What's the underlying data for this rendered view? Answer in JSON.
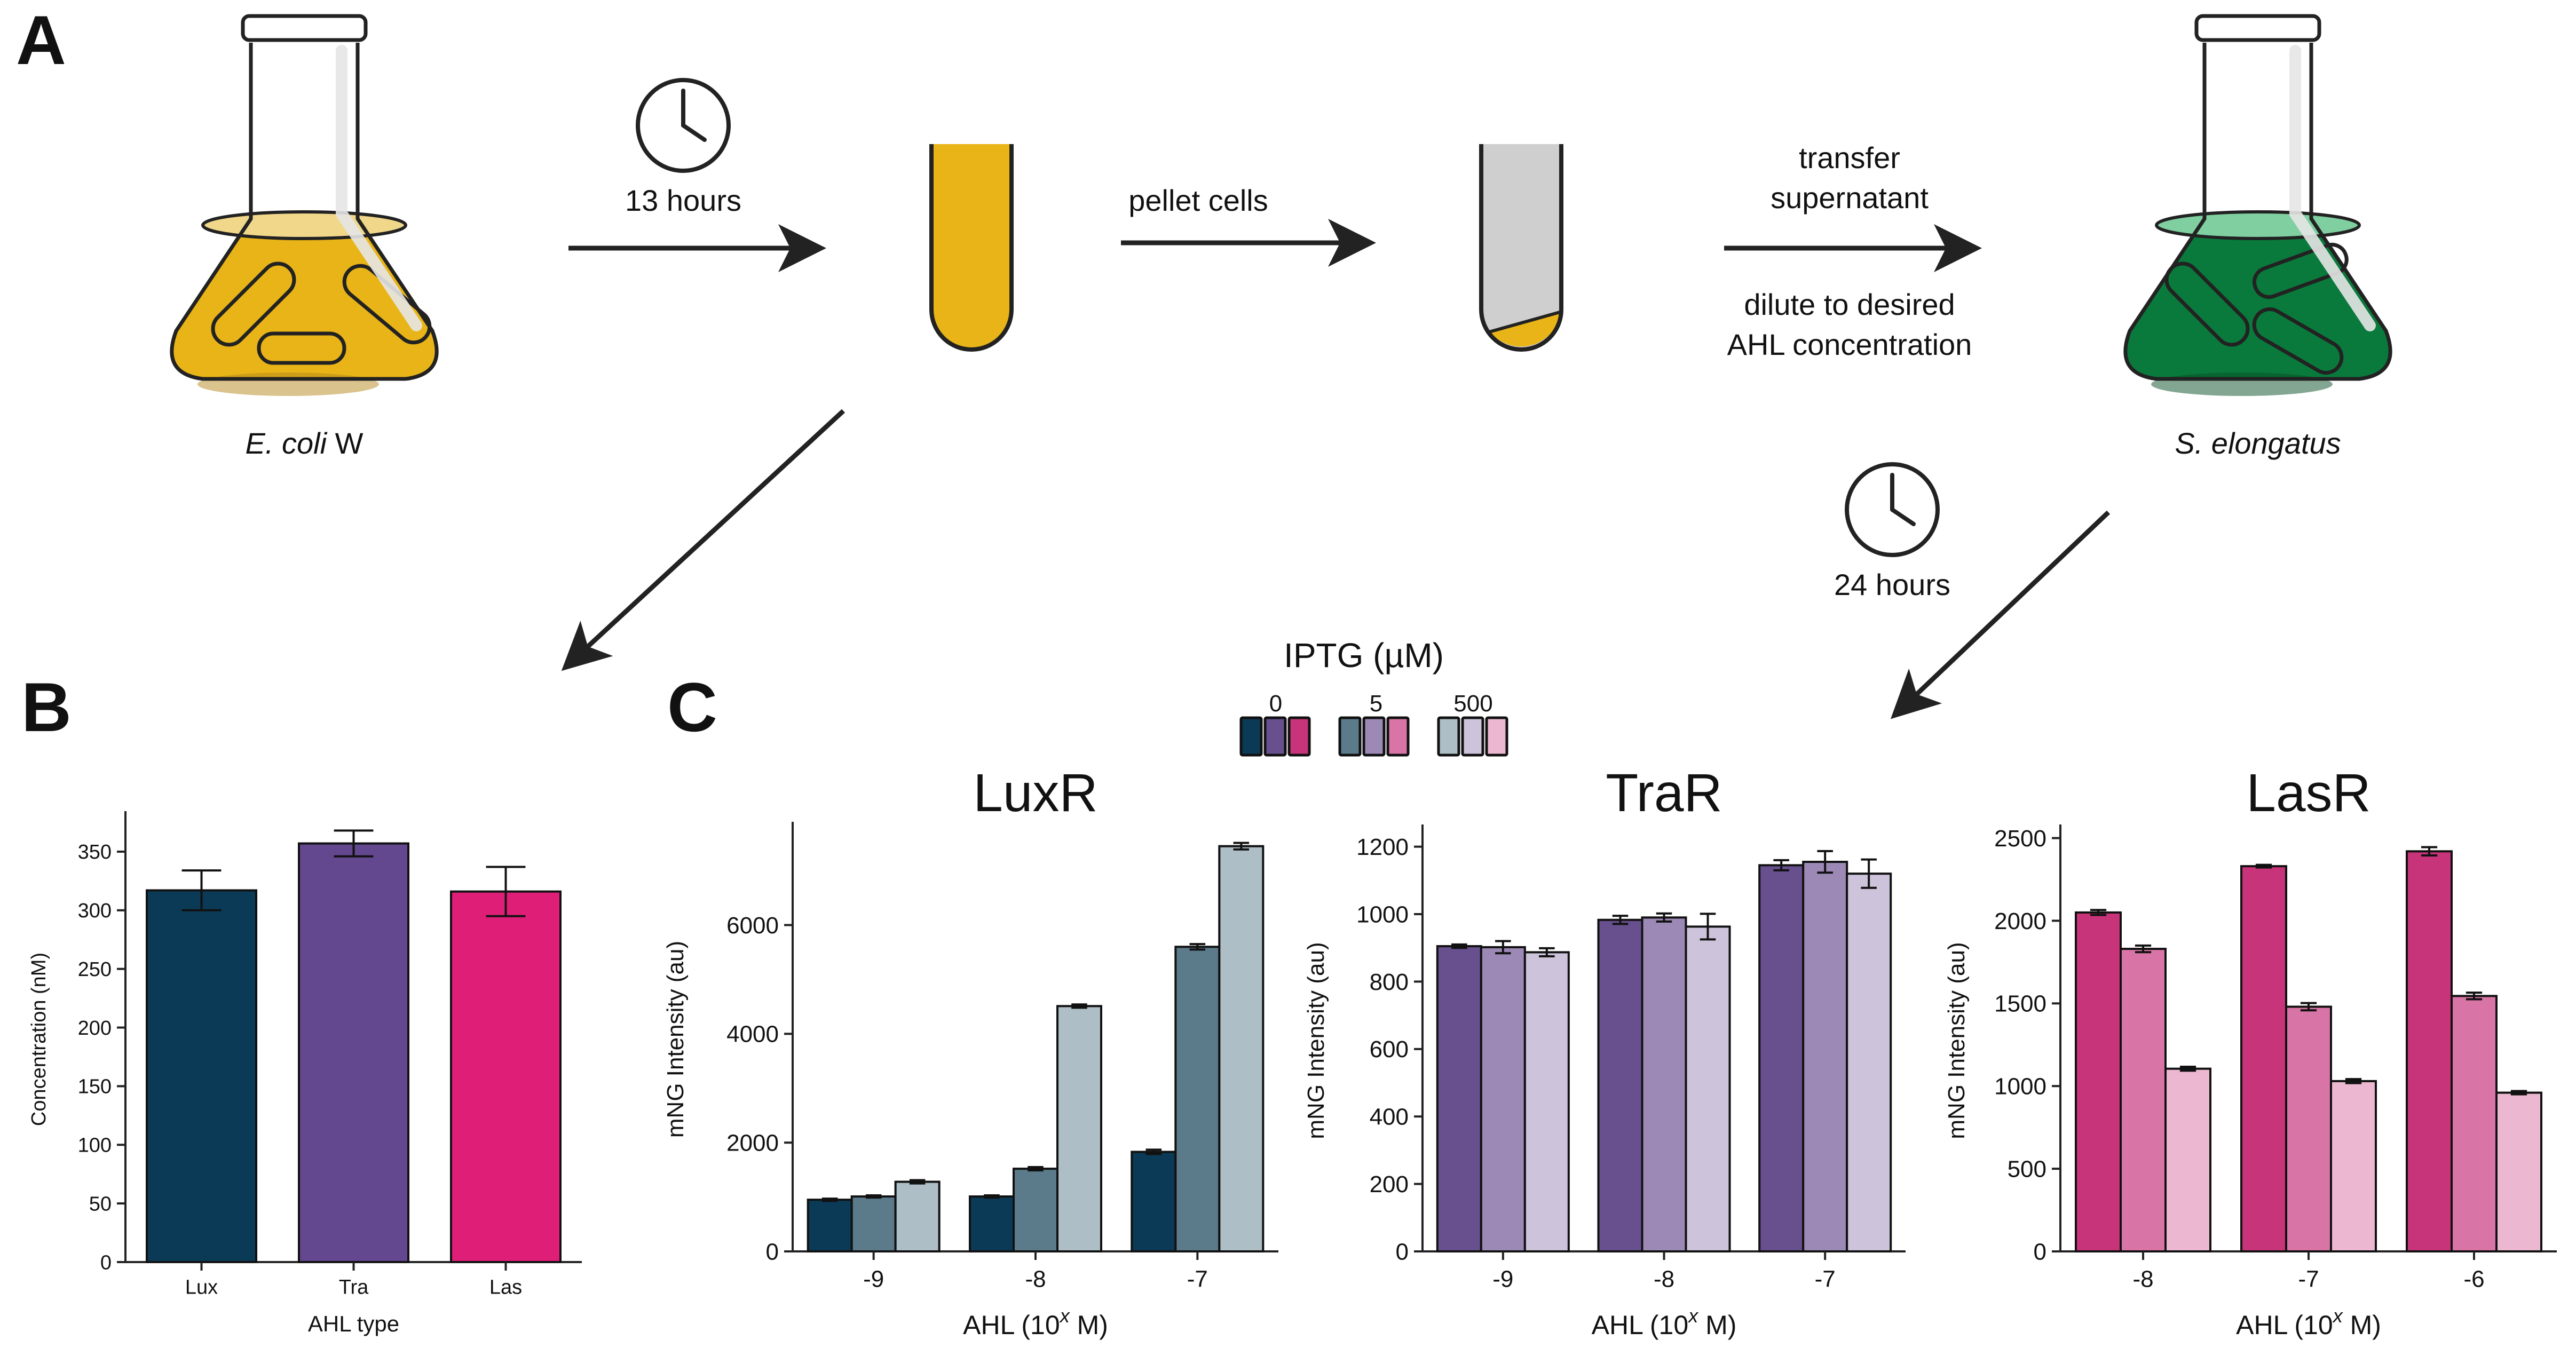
{
  "panels": {
    "a": "A",
    "b": "B",
    "c": "C"
  },
  "schematic": {
    "ecoli_label_italic": "E. coli",
    "ecoli_label_plain": " W",
    "selongatus_label": "S. elongatus",
    "step1_time": "13 hours",
    "step2_label": "pellet cells",
    "step3_line1": "transfer",
    "step3_line2": "supernatant",
    "step3_line3": "dilute to desired",
    "step3_line4": "AHL concentration",
    "step4_time": "24 hours"
  },
  "legend": {
    "title": "IPTG (µM)",
    "levels": [
      "0",
      "5",
      "500"
    ]
  },
  "colors": {
    "lux": [
      "#0b3a56",
      "#5b7a8a",
      "#adbec6"
    ],
    "tra": [
      "#67508d",
      "#9c89b6",
      "#cdc3db"
    ],
    "las": [
      "#c83479",
      "#d875a6",
      "#ecb8d1"
    ],
    "b": [
      "#0b3a56",
      "#63478f",
      "#df1e78"
    ],
    "broth_yellow": "#e8b417",
    "culture_green": "#0a7a3c"
  },
  "chart_data": [
    {
      "id": "B",
      "type": "bar",
      "categories": [
        "Lux",
        "Tra",
        "Las"
      ],
      "values": [
        317,
        357,
        316
      ],
      "errors": [
        17,
        11,
        21
      ],
      "xlabel": "AHL type",
      "ylabel": "Concentration (nM)",
      "ylim": [
        0,
        380
      ],
      "yticks": [
        0,
        50,
        100,
        150,
        200,
        250,
        300,
        350
      ],
      "ytick_labels": [
        "0",
        "50",
        "100",
        "150",
        "200",
        "250",
        "300",
        "350"
      ],
      "grid": false
    },
    {
      "id": "LuxR",
      "type": "bar",
      "title": "LuxR",
      "categories": [
        "-9",
        "-8",
        "-7"
      ],
      "series": [
        {
          "values": [
            950,
            1010,
            1830
          ],
          "errors": [
            20,
            20,
            40
          ]
        },
        {
          "values": [
            1010,
            1520,
            5600
          ],
          "errors": [
            20,
            30,
            50
          ]
        },
        {
          "values": [
            1280,
            4510,
            7450
          ],
          "errors": [
            30,
            30,
            60
          ]
        }
      ],
      "xlabel_prefix": "AHL (10",
      "xlabel_sup": "x",
      "xlabel_suffix": " M)",
      "ylabel": "mNG Intensity (au)",
      "ylim": [
        0,
        7800
      ],
      "yticks": [
        0,
        2000,
        4000,
        6000
      ],
      "ytick_labels": [
        "0",
        "2000",
        "4000",
        "6000"
      ],
      "grid": false
    },
    {
      "id": "TraR",
      "type": "bar",
      "title": "TraR",
      "categories": [
        "-9",
        "-8",
        "-7"
      ],
      "series": [
        {
          "values": [
            905,
            983,
            1145
          ],
          "errors": [
            5,
            12,
            15
          ]
        },
        {
          "values": [
            902,
            990,
            1155
          ],
          "errors": [
            18,
            12,
            32
          ]
        },
        {
          "values": [
            887,
            963,
            1120
          ],
          "errors": [
            12,
            38,
            42
          ]
        }
      ],
      "xlabel_prefix": "AHL (10",
      "xlabel_sup": "x",
      "xlabel_suffix": " M)",
      "ylabel": "mNG Intensity (au)",
      "ylim": [
        0,
        1250
      ],
      "yticks": [
        0,
        200,
        400,
        600,
        800,
        1000,
        1200
      ],
      "ytick_labels": [
        "0",
        "200",
        "400",
        "600",
        "800",
        "1000",
        "1200"
      ],
      "grid": false
    },
    {
      "id": "LasR",
      "type": "bar",
      "title": "LasR",
      "categories": [
        "-8",
        "-7",
        "-6"
      ],
      "series": [
        {
          "values": [
            2050,
            2330,
            2420
          ],
          "errors": [
            15,
            8,
            25
          ]
        },
        {
          "values": [
            1830,
            1480,
            1545
          ],
          "errors": [
            20,
            22,
            20
          ]
        },
        {
          "values": [
            1105,
            1030,
            960
          ],
          "errors": [
            12,
            12,
            10
          ]
        }
      ],
      "xlabel_prefix": "AHL (10",
      "xlabel_sup": "x",
      "xlabel_suffix": " M)",
      "ylabel": "mNG Intensity (au)",
      "ylim": [
        0,
        2550
      ],
      "yticks": [
        0,
        500,
        1000,
        1500,
        2000,
        2500
      ],
      "ytick_labels": [
        "0",
        "500",
        "1000",
        "1500",
        "2000",
        "2500"
      ],
      "grid": false
    }
  ]
}
